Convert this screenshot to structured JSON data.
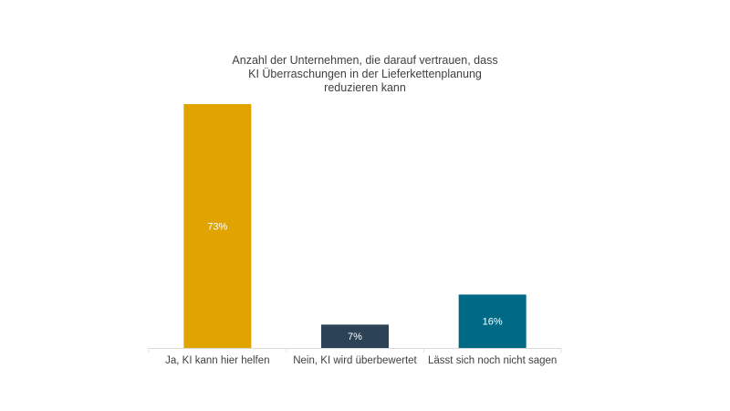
{
  "chart_data": {
    "type": "bar",
    "title": "Anzahl der Unternehmen, die darauf vertrauen, dass\nKI Überraschungen in der Lieferkettenplanung\nreduzieren kann",
    "categories": [
      "Ja, KI kann hier helfen",
      "Nein, KI wird überbewertet",
      "Lässt sich noch nicht sagen"
    ],
    "values": [
      73,
      7,
      16
    ],
    "data_labels": [
      "73%",
      "7%",
      "16%"
    ],
    "colors": [
      "#E0A300",
      "#2B4257",
      "#006A86"
    ],
    "xlabel": "",
    "ylabel": "",
    "ylim": [
      0,
      73
    ],
    "grid": false,
    "legend": "none"
  }
}
